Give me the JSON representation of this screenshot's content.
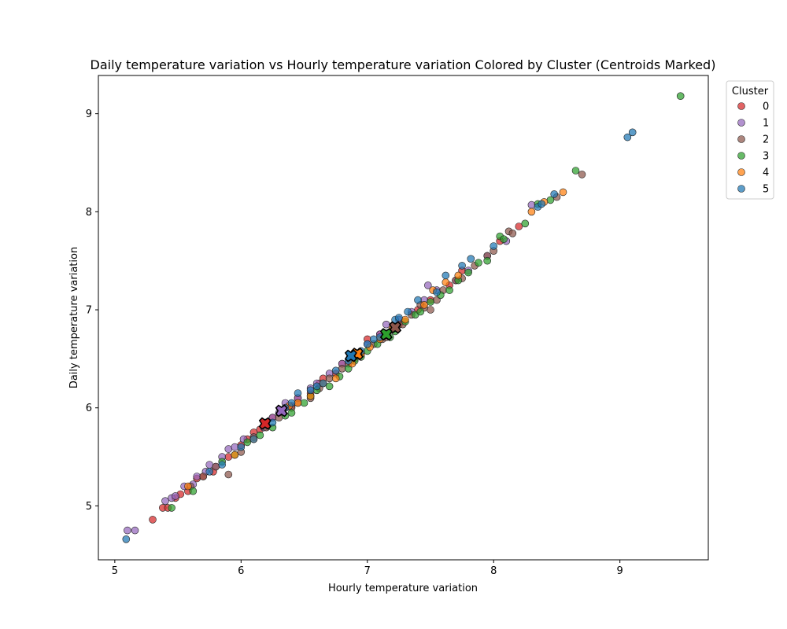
{
  "chart_data": {
    "type": "scatter",
    "title": "Daily temperature variation vs Hourly temperature variation Colored by Cluster (Centroids Marked)",
    "xlabel": "Hourly temperature variation",
    "ylabel": "Daily temperature variation",
    "xlim": [
      4.87,
      9.7
    ],
    "ylim": [
      4.45,
      9.39
    ],
    "xticks": [
      "5",
      "6",
      "7",
      "8",
      "9"
    ],
    "yticks": [
      "5",
      "6",
      "7",
      "8",
      "9"
    ],
    "grid": false,
    "legend": {
      "title": "Cluster",
      "placement": "outside-top-right"
    },
    "series": [
      {
        "name": "0",
        "color": "#d62728",
        "points": [
          [
            5.3,
            4.86
          ],
          [
            5.38,
            4.98
          ],
          [
            5.42,
            4.98
          ],
          [
            5.48,
            5.08
          ],
          [
            5.52,
            5.12
          ],
          [
            5.58,
            5.15
          ],
          [
            5.7,
            5.3
          ],
          [
            5.78,
            5.35
          ],
          [
            5.9,
            5.5
          ],
          [
            6.0,
            5.62
          ],
          [
            6.05,
            5.68
          ],
          [
            6.15,
            5.78
          ],
          [
            6.2,
            5.85
          ],
          [
            6.25,
            5.9
          ],
          [
            6.35,
            6.0
          ],
          [
            6.4,
            6.02
          ],
          [
            6.55,
            6.15
          ],
          [
            6.62,
            6.25
          ],
          [
            6.65,
            6.3
          ],
          [
            6.75,
            6.35
          ],
          [
            6.8,
            6.45
          ],
          [
            6.9,
            6.55
          ],
          [
            7.0,
            6.7
          ],
          [
            7.1,
            6.75
          ],
          [
            7.25,
            6.85
          ],
          [
            7.4,
            7.0
          ],
          [
            7.5,
            7.1
          ],
          [
            7.65,
            7.25
          ],
          [
            7.75,
            7.4
          ],
          [
            8.05,
            7.7
          ],
          [
            8.2,
            7.85
          ],
          [
            5.65,
            5.28
          ],
          [
            6.1,
            5.75
          ],
          [
            6.45,
            6.1
          ]
        ],
        "centroid": [
          6.19,
          5.84
        ]
      },
      {
        "name": "1",
        "color": "#9467bd",
        "points": [
          [
            5.1,
            4.75
          ],
          [
            5.16,
            4.75
          ],
          [
            5.45,
            5.08
          ],
          [
            5.48,
            5.1
          ],
          [
            5.55,
            5.2
          ],
          [
            5.62,
            5.22
          ],
          [
            5.65,
            5.3
          ],
          [
            5.72,
            5.35
          ],
          [
            5.8,
            5.4
          ],
          [
            5.85,
            5.5
          ],
          [
            5.9,
            5.58
          ],
          [
            5.95,
            5.6
          ],
          [
            6.02,
            5.68
          ],
          [
            6.1,
            5.7
          ],
          [
            6.18,
            5.8
          ],
          [
            6.25,
            5.9
          ],
          [
            6.3,
            5.95
          ],
          [
            6.35,
            6.05
          ],
          [
            6.45,
            6.1
          ],
          [
            6.55,
            6.2
          ],
          [
            6.6,
            6.25
          ],
          [
            6.7,
            6.35
          ],
          [
            6.8,
            6.45
          ],
          [
            6.9,
            6.55
          ],
          [
            7.0,
            6.65
          ],
          [
            7.1,
            6.75
          ],
          [
            7.15,
            6.85
          ],
          [
            7.25,
            6.9
          ],
          [
            7.35,
            6.98
          ],
          [
            7.45,
            7.1
          ],
          [
            7.48,
            7.25
          ],
          [
            7.55,
            7.2
          ],
          [
            7.7,
            7.3
          ],
          [
            7.8,
            7.4
          ],
          [
            7.95,
            7.55
          ],
          [
            8.1,
            7.7
          ],
          [
            8.3,
            8.07
          ],
          [
            5.4,
            5.05
          ],
          [
            5.75,
            5.42
          ]
        ],
        "centroid": [
          6.32,
          5.97
        ]
      },
      {
        "name": "2",
        "color": "#8c564b",
        "points": [
          [
            5.6,
            5.2
          ],
          [
            5.7,
            5.3
          ],
          [
            5.8,
            5.4
          ],
          [
            5.9,
            5.32
          ],
          [
            6.0,
            5.55
          ],
          [
            6.1,
            5.7
          ],
          [
            6.2,
            5.8
          ],
          [
            6.3,
            5.9
          ],
          [
            6.4,
            6.0
          ],
          [
            6.45,
            6.05
          ],
          [
            6.55,
            6.1
          ],
          [
            6.62,
            6.2
          ],
          [
            6.7,
            6.3
          ],
          [
            6.8,
            6.4
          ],
          [
            6.9,
            6.5
          ],
          [
            6.95,
            6.55
          ],
          [
            7.05,
            6.65
          ],
          [
            7.12,
            6.7
          ],
          [
            7.2,
            6.8
          ],
          [
            7.28,
            6.85
          ],
          [
            7.35,
            6.95
          ],
          [
            7.42,
            7.05
          ],
          [
            7.5,
            7.0
          ],
          [
            7.55,
            7.1
          ],
          [
            7.6,
            7.2
          ],
          [
            7.7,
            7.3
          ],
          [
            7.75,
            7.32
          ],
          [
            7.85,
            7.45
          ],
          [
            7.95,
            7.55
          ],
          [
            8.0,
            7.6
          ],
          [
            8.12,
            7.8
          ],
          [
            8.15,
            7.78
          ],
          [
            8.5,
            8.15
          ],
          [
            8.7,
            8.38
          ],
          [
            6.65,
            6.25
          ],
          [
            6.85,
            6.45
          ],
          [
            7.15,
            6.72
          ],
          [
            7.45,
            7.02
          ]
        ],
        "centroid": [
          7.22,
          6.82
        ]
      },
      {
        "name": "3",
        "color": "#2ca02c",
        "points": [
          [
            5.45,
            4.98
          ],
          [
            5.62,
            5.15
          ],
          [
            5.85,
            5.45
          ],
          [
            5.95,
            5.52
          ],
          [
            6.05,
            5.65
          ],
          [
            6.15,
            5.72
          ],
          [
            6.25,
            5.8
          ],
          [
            6.4,
            5.95
          ],
          [
            6.5,
            6.05
          ],
          [
            6.55,
            6.12
          ],
          [
            6.6,
            6.18
          ],
          [
            6.7,
            6.22
          ],
          [
            6.78,
            6.32
          ],
          [
            6.85,
            6.4
          ],
          [
            6.95,
            6.52
          ],
          [
            7.0,
            6.58
          ],
          [
            7.08,
            6.65
          ],
          [
            7.18,
            6.72
          ],
          [
            7.22,
            6.78
          ],
          [
            7.3,
            6.88
          ],
          [
            7.38,
            6.95
          ],
          [
            7.42,
            6.98
          ],
          [
            7.5,
            7.08
          ],
          [
            7.58,
            7.15
          ],
          [
            7.65,
            7.2
          ],
          [
            7.72,
            7.3
          ],
          [
            7.8,
            7.38
          ],
          [
            7.88,
            7.48
          ],
          [
            7.95,
            7.5
          ],
          [
            8.05,
            7.75
          ],
          [
            8.08,
            7.72
          ],
          [
            8.25,
            7.88
          ],
          [
            8.35,
            8.08
          ],
          [
            8.45,
            8.12
          ],
          [
            8.65,
            8.42
          ],
          [
            9.48,
            9.18
          ],
          [
            6.35,
            5.92
          ],
          [
            6.9,
            6.48
          ]
        ],
        "centroid": [
          7.15,
          6.75
        ]
      },
      {
        "name": "4",
        "color": "#ff7f0e",
        "points": [
          [
            5.58,
            5.2
          ],
          [
            5.95,
            5.52
          ],
          [
            6.1,
            5.68
          ],
          [
            6.45,
            6.05
          ],
          [
            6.55,
            6.12
          ],
          [
            6.65,
            6.25
          ],
          [
            6.75,
            6.3
          ],
          [
            6.88,
            6.45
          ],
          [
            6.95,
            6.55
          ],
          [
            7.02,
            6.62
          ],
          [
            7.2,
            6.82
          ],
          [
            7.3,
            6.9
          ],
          [
            7.45,
            7.05
          ],
          [
            7.52,
            7.2
          ],
          [
            7.62,
            7.28
          ],
          [
            7.72,
            7.35
          ],
          [
            8.3,
            8.0
          ],
          [
            8.4,
            8.1
          ],
          [
            8.55,
            8.2
          ],
          [
            6.38,
            6.02
          ],
          [
            7.1,
            6.7
          ]
        ],
        "centroid": [
          6.92,
          6.55
        ]
      },
      {
        "name": "5",
        "color": "#1f77b4",
        "points": [
          [
            5.09,
            4.66
          ],
          [
            5.75,
            5.35
          ],
          [
            5.85,
            5.42
          ],
          [
            6.0,
            5.6
          ],
          [
            6.1,
            5.68
          ],
          [
            6.25,
            5.85
          ],
          [
            6.35,
            6.0
          ],
          [
            6.4,
            6.05
          ],
          [
            6.45,
            6.15
          ],
          [
            6.55,
            6.18
          ],
          [
            6.65,
            6.25
          ],
          [
            6.75,
            6.38
          ],
          [
            6.85,
            6.48
          ],
          [
            6.95,
            6.58
          ],
          [
            7.0,
            6.65
          ],
          [
            7.1,
            6.72
          ],
          [
            7.22,
            6.9
          ],
          [
            7.25,
            6.92
          ],
          [
            7.32,
            6.98
          ],
          [
            7.4,
            7.1
          ],
          [
            7.55,
            7.18
          ],
          [
            7.62,
            7.35
          ],
          [
            7.75,
            7.45
          ],
          [
            7.82,
            7.52
          ],
          [
            8.0,
            7.65
          ],
          [
            8.35,
            8.05
          ],
          [
            8.38,
            8.08
          ],
          [
            8.48,
            8.18
          ],
          [
            9.06,
            8.76
          ],
          [
            9.1,
            8.81
          ],
          [
            6.6,
            6.22
          ],
          [
            7.05,
            6.7
          ]
        ],
        "centroid": [
          6.87,
          6.53
        ]
      }
    ]
  }
}
